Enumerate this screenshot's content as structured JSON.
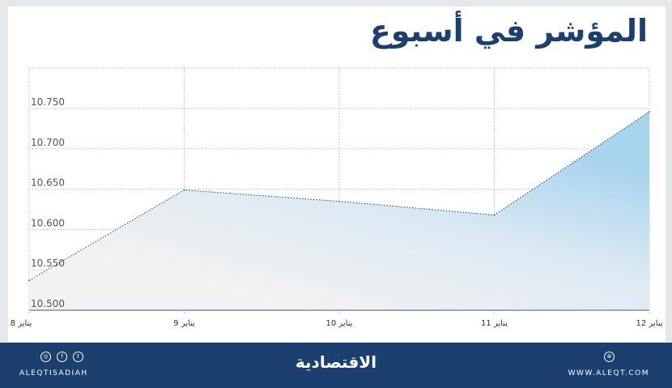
{
  "title": "المؤشر في أسبوع",
  "chart_data": {
    "type": "area",
    "title": "المؤشر في أسبوع",
    "categories": [
      "8 يناير",
      "9 يناير",
      "10 يناير",
      "11 يناير",
      "12 يناير"
    ],
    "values": [
      10537,
      10649,
      10635,
      10618,
      10746
    ],
    "ylim": [
      10500,
      10800
    ],
    "yticks": [
      10500,
      10550,
      10600,
      10650,
      10700,
      10750
    ],
    "ytick_labels": [
      "10.500",
      "10.550",
      "10.600",
      "10.650",
      "10.700",
      "10.750"
    ],
    "grid": true,
    "colors": {
      "fill_start": "#f3f2f2",
      "fill_end": "#a9d4ee",
      "line": "#1b3f6e",
      "baseline": "#7a8ea8"
    }
  },
  "footer": {
    "handle": "ALEQTISADIAH",
    "logo": "الاقتصادية",
    "site": "WWW.ALEQT.COM",
    "icons": [
      "instagram-icon",
      "facebook-icon",
      "twitter-icon",
      "globe-icon"
    ]
  }
}
